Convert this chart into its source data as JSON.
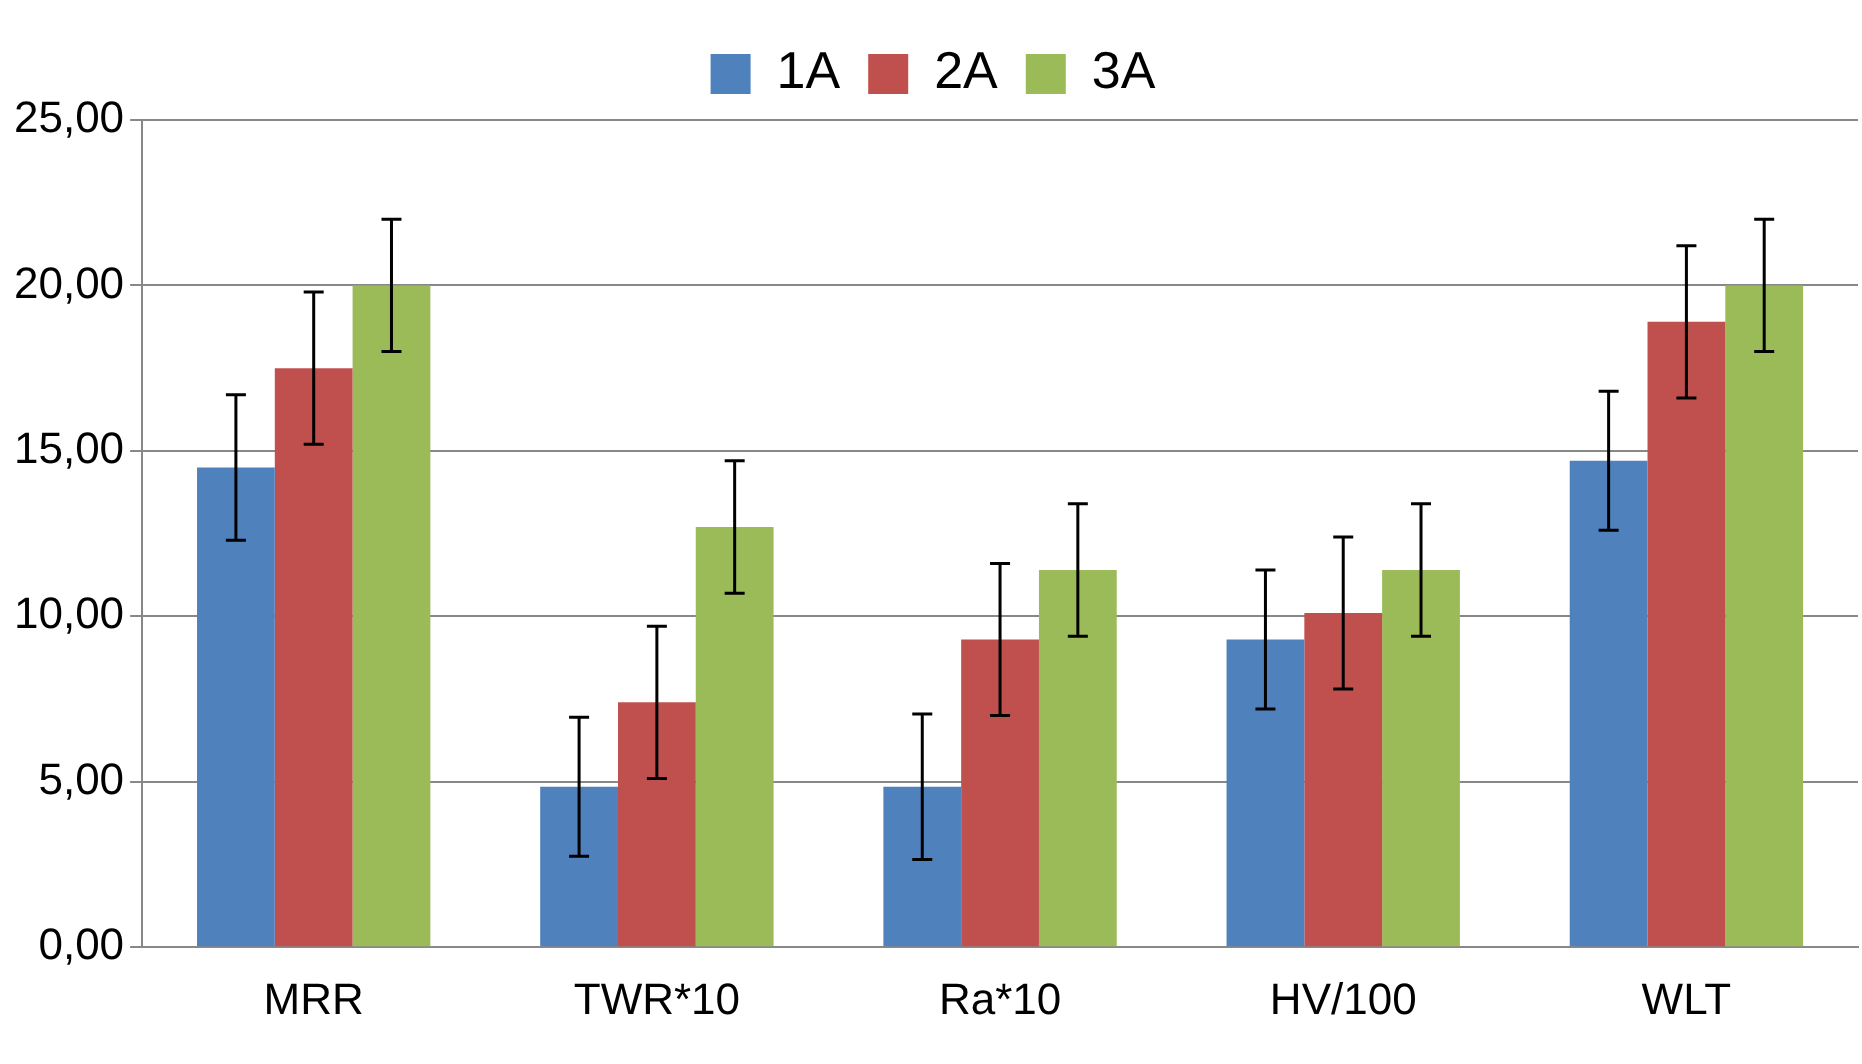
{
  "chart_data": {
    "type": "bar",
    "categories": [
      "MRR",
      "TWR*10",
      "Ra*10",
      "HV/100",
      "WLT"
    ],
    "series": [
      {
        "name": "1A",
        "color": "#4f81bd",
        "values": [
          14.5,
          4.85,
          4.85,
          9.3,
          14.7
        ],
        "errors": [
          2.2,
          2.1,
          2.2,
          2.1,
          2.1
        ]
      },
      {
        "name": "2A",
        "color": "#c0504d",
        "values": [
          17.5,
          7.4,
          9.3,
          10.1,
          18.9
        ],
        "errors": [
          2.3,
          2.3,
          2.3,
          2.3,
          2.3
        ]
      },
      {
        "name": "3A",
        "color": "#9bbb59",
        "values": [
          20.0,
          12.7,
          11.4,
          11.4,
          20.0
        ],
        "errors": [
          2.0,
          2.0,
          2.0,
          2.0,
          2.0
        ]
      }
    ],
    "ylim": [
      0,
      25
    ],
    "yticks": [
      {
        "value": 0,
        "label": "0,00"
      },
      {
        "value": 5,
        "label": "5,00"
      },
      {
        "value": 10,
        "label": "10,00"
      },
      {
        "value": 15,
        "label": "15,00"
      },
      {
        "value": 20,
        "label": "20,00"
      },
      {
        "value": 25,
        "label": "25,00"
      }
    ],
    "grid": "y",
    "legend": "top"
  }
}
